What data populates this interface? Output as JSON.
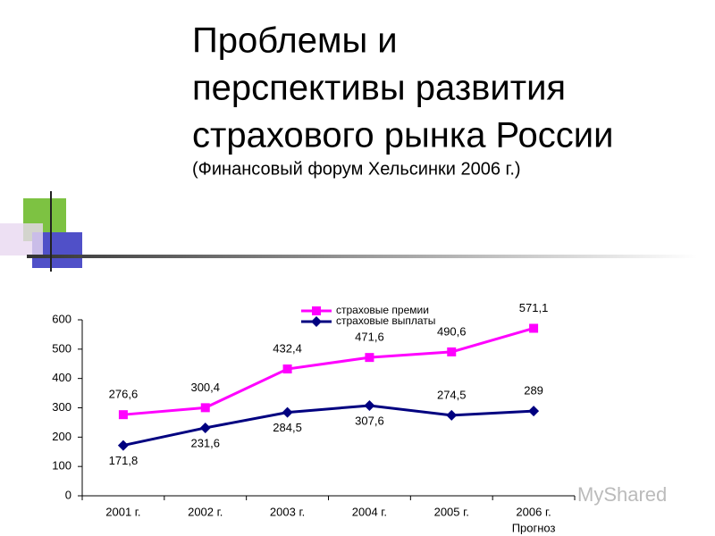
{
  "chart_data": {
    "type": "line",
    "title": [
      "Проблемы и",
      "перспективы развития",
      "страхового рынка России"
    ],
    "subtitle": "(Финансовый форум Хельсинки 2006 г.)",
    "categories": [
      "2001 г.",
      "2002 г.",
      "2003 г.",
      "2004 г.",
      "2005 г.",
      "2006 г."
    ],
    "forecast_note": "Прогноз",
    "series": [
      {
        "name": "страховые премии",
        "color": "#ff00ff",
        "marker": "square",
        "values": [
          276.6,
          300.4,
          432.4,
          471.6,
          490.6,
          571.1
        ],
        "value_labels": [
          "276,6",
          "300,4",
          "432,4",
          "471,6",
          "490,6",
          "571,1"
        ]
      },
      {
        "name": "страховые выплаты",
        "color": "#000080",
        "marker": "diamond",
        "values": [
          171.8,
          231.6,
          284.5,
          307.6,
          274.5,
          289
        ],
        "value_labels": [
          "171,8",
          "231,6",
          "284,5",
          "307,6",
          "274,5",
          "289"
        ]
      }
    ],
    "ylim": [
      0,
      600
    ],
    "yticks": [
      0,
      100,
      200,
      300,
      400,
      500,
      600
    ],
    "grid": false,
    "legend": "top",
    "watermark": "MyShared"
  }
}
